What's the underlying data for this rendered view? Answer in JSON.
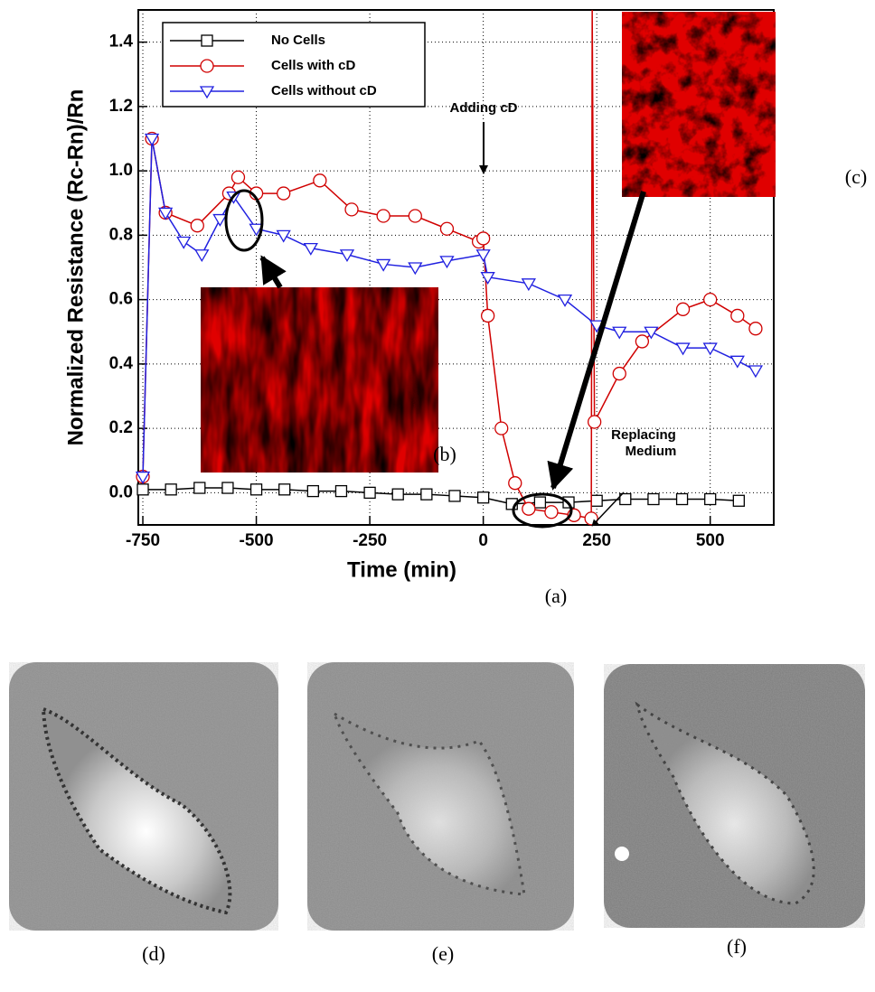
{
  "chart_data": {
    "type": "line",
    "xlabel": "Time (min)",
    "ylabel": "Normalized Resistance (Rc-Rn)/Rn",
    "xlim": [
      -760,
      640
    ],
    "ylim": [
      -0.1,
      1.5
    ],
    "xticks": [
      -750,
      -500,
      -250,
      0,
      250,
      500
    ],
    "yticks": [
      {
        "value": 0,
        "label": "0.0"
      },
      0.2,
      0.4,
      0.6,
      0.8,
      {
        "value": 1,
        "label": "1.0"
      },
      1.2,
      1.4
    ],
    "grid": true,
    "legend": "upper left",
    "series": [
      {
        "name": "No Cells",
        "color": "#000000",
        "marker": "square",
        "x": [
          -750,
          -688,
          -625,
          -563,
          -500,
          -438,
          -375,
          -313,
          -250,
          -188,
          -125,
          -63,
          0,
          63,
          125,
          188,
          250,
          313,
          375,
          438,
          500,
          563
        ],
        "values": [
          0.01,
          0.01,
          0.015,
          0.015,
          0.01,
          0.01,
          0.005,
          0.005,
          0,
          -0.005,
          -0.005,
          -0.01,
          -0.015,
          -0.035,
          -0.03,
          -0.03,
          -0.025,
          -0.02,
          -0.02,
          -0.02,
          -0.02,
          -0.025
        ]
      },
      {
        "name": "Cells with cD",
        "color": "#d00000",
        "marker": "circle",
        "x": [
          -750,
          -730,
          -700,
          -630,
          -560,
          -540,
          -500,
          -440,
          -360,
          -290,
          -220,
          -150,
          -80,
          -10,
          0,
          10,
          40,
          70,
          100,
          150,
          200,
          238,
          240,
          245,
          300,
          350,
          440,
          500,
          560,
          600
        ],
        "values": [
          0.05,
          1.1,
          0.87,
          0.83,
          0.93,
          0.98,
          0.93,
          0.93,
          0.97,
          0.88,
          0.86,
          0.86,
          0.82,
          0.78,
          0.79,
          0.55,
          0.2,
          0.03,
          -0.05,
          -0.06,
          -0.07,
          -0.08,
          1.5,
          0.22,
          0.37,
          0.47,
          0.57,
          0.6,
          0.55,
          0.51
        ]
      },
      {
        "name": "Cells without cD",
        "color": "#2020e0",
        "marker": "triangle-down",
        "x": [
          -750,
          -730,
          -700,
          -660,
          -620,
          -580,
          -550,
          -500,
          -440,
          -380,
          -300,
          -220,
          -150,
          -80,
          0,
          10,
          100,
          180,
          250,
          300,
          370,
          440,
          500,
          560,
          600
        ],
        "values": [
          0.05,
          1.1,
          0.87,
          0.78,
          0.74,
          0.85,
          0.92,
          0.82,
          0.8,
          0.76,
          0.74,
          0.71,
          0.7,
          0.72,
          0.74,
          0.67,
          0.65,
          0.6,
          0.52,
          0.5,
          0.5,
          0.45,
          0.45,
          0.41,
          0.38
        ]
      }
    ],
    "annotations": [
      {
        "lines": [
          "Adding cD"
        ]
      },
      {
        "lines": [
          "Replacing",
          "Medium"
        ]
      }
    ]
  },
  "panel_labels": [
    "(a)",
    "(b)",
    "(c)",
    "(d)",
    "(e)",
    "(f)"
  ]
}
